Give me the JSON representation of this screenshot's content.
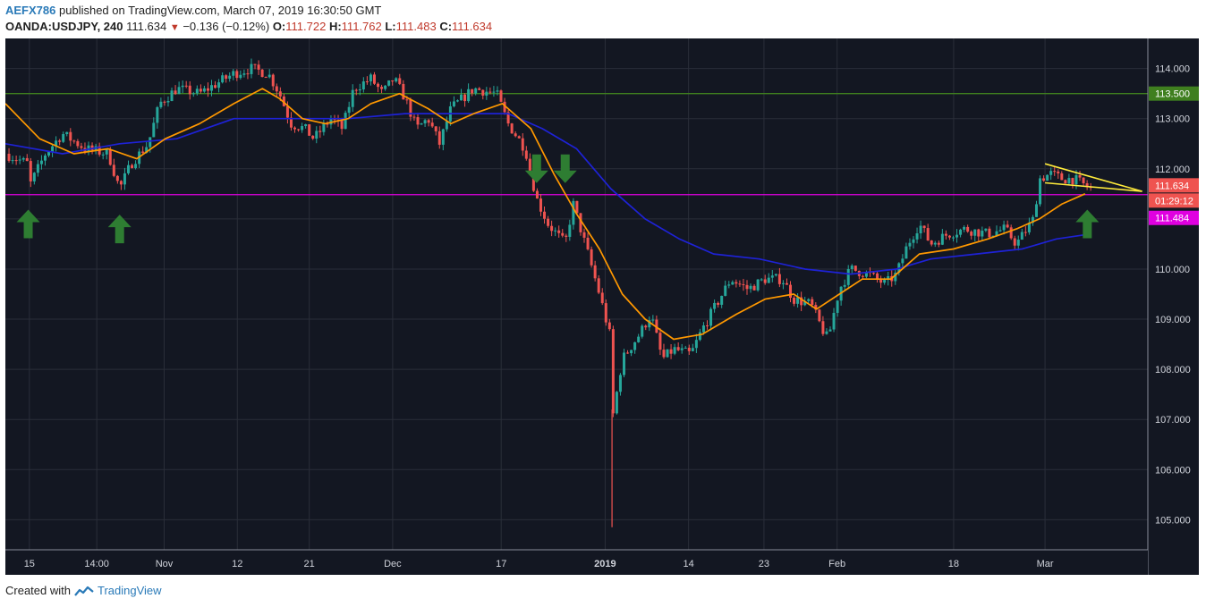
{
  "header": {
    "author": "AEFX786",
    "published": "published on TradingView.com, March 07, 2019 16:30:50 GMT",
    "symbol": "OANDA:USDJPY, 240",
    "last": "111.634",
    "change": "−0.136 (−0.12%)",
    "o_label": "O:",
    "o": "111.722",
    "h_label": "H:",
    "h": "111.762",
    "l_label": "L:",
    "l": "111.483",
    "c_label": "C:",
    "c": "111.634"
  },
  "footer": {
    "created": "Created with",
    "brand": "TradingView"
  },
  "colors": {
    "background": "#131722",
    "grid": "#2a2e39",
    "up": "#26a69a",
    "down": "#ef5350",
    "ma_fast": "#ff9800",
    "ma_slow": "#1e22d6",
    "resistance": "#3f7f1f",
    "support": "#e000e0",
    "wedge": "#ffeb3b",
    "arrow": "#2e7d32"
  },
  "chart_data": {
    "type": "candlestick",
    "symbol": "OANDA:USDJPY",
    "timeframe": "240",
    "ylim": [
      104.4,
      114.6
    ],
    "y_ticks": [
      105,
      106,
      107,
      108,
      109,
      110,
      111,
      112,
      113,
      114
    ],
    "y_tick_labels": [
      "105.000",
      "106.000",
      "107.000",
      "108.000",
      "109.000",
      "110.000",
      "111.000",
      "112.000",
      "113.000",
      "114.000"
    ],
    "x_ticks": [
      {
        "label": "15",
        "x": 0.021,
        "bold": false
      },
      {
        "label": "14:00",
        "x": 0.08,
        "bold": false
      },
      {
        "label": "Nov",
        "x": 0.139,
        "bold": false
      },
      {
        "label": "12",
        "x": 0.203,
        "bold": false
      },
      {
        "label": "21",
        "x": 0.266,
        "bold": false
      },
      {
        "label": "Dec",
        "x": 0.339,
        "bold": false
      },
      {
        "label": "17",
        "x": 0.434,
        "bold": false
      },
      {
        "label": "2019",
        "x": 0.525,
        "bold": true
      },
      {
        "label": "14",
        "x": 0.598,
        "bold": false
      },
      {
        "label": "23",
        "x": 0.664,
        "bold": false
      },
      {
        "label": "Feb",
        "x": 0.728,
        "bold": false
      },
      {
        "label": "18",
        "x": 0.83,
        "bold": false
      },
      {
        "label": "Mar",
        "x": 0.91,
        "bold": false
      }
    ],
    "price_path": [
      [
        0.0,
        112.3
      ],
      [
        0.02,
        112.1
      ],
      [
        0.022,
        111.7
      ],
      [
        0.035,
        112.3
      ],
      [
        0.05,
        112.7
      ],
      [
        0.07,
        112.4
      ],
      [
        0.09,
        112.3
      ],
      [
        0.1,
        111.6
      ],
      [
        0.11,
        112.1
      ],
      [
        0.125,
        112.5
      ],
      [
        0.135,
        113.3
      ],
      [
        0.15,
        113.6
      ],
      [
        0.17,
        113.5
      ],
      [
        0.185,
        113.7
      ],
      [
        0.2,
        113.9
      ],
      [
        0.215,
        114.0
      ],
      [
        0.23,
        113.9
      ],
      [
        0.24,
        113.5
      ],
      [
        0.25,
        112.9
      ],
      [
        0.262,
        112.8
      ],
      [
        0.27,
        112.6
      ],
      [
        0.285,
        113.0
      ],
      [
        0.295,
        112.8
      ],
      [
        0.305,
        113.6
      ],
      [
        0.32,
        113.8
      ],
      [
        0.33,
        113.5
      ],
      [
        0.34,
        113.8
      ],
      [
        0.35,
        113.4
      ],
      [
        0.36,
        112.8
      ],
      [
        0.37,
        113.0
      ],
      [
        0.38,
        112.5
      ],
      [
        0.39,
        113.2
      ],
      [
        0.41,
        113.6
      ],
      [
        0.43,
        113.5
      ],
      [
        0.44,
        112.9
      ],
      [
        0.455,
        112.4
      ],
      [
        0.465,
        111.4
      ],
      [
        0.475,
        110.9
      ],
      [
        0.49,
        110.5
      ],
      [
        0.497,
        111.3
      ],
      [
        0.51,
        110.3
      ],
      [
        0.52,
        109.5
      ],
      [
        0.53,
        108.6
      ],
      [
        0.532,
        107.1
      ],
      [
        0.54,
        108.2
      ],
      [
        0.555,
        108.7
      ],
      [
        0.565,
        109.1
      ],
      [
        0.575,
        108.2
      ],
      [
        0.585,
        108.4
      ],
      [
        0.6,
        108.3
      ],
      [
        0.61,
        108.8
      ],
      [
        0.625,
        109.4
      ],
      [
        0.635,
        109.8
      ],
      [
        0.65,
        109.6
      ],
      [
        0.665,
        109.8
      ],
      [
        0.68,
        109.8
      ],
      [
        0.69,
        109.4
      ],
      [
        0.705,
        109.3
      ],
      [
        0.715,
        108.8
      ],
      [
        0.72,
        108.6
      ],
      [
        0.73,
        109.6
      ],
      [
        0.74,
        110.0
      ],
      [
        0.755,
        109.9
      ],
      [
        0.77,
        109.7
      ],
      [
        0.78,
        109.9
      ],
      [
        0.79,
        110.5
      ],
      [
        0.8,
        110.9
      ],
      [
        0.81,
        110.5
      ],
      [
        0.825,
        110.7
      ],
      [
        0.84,
        110.8
      ],
      [
        0.86,
        110.7
      ],
      [
        0.875,
        110.8
      ],
      [
        0.885,
        110.5
      ],
      [
        0.9,
        111.0
      ],
      [
        0.905,
        111.8
      ],
      [
        0.915,
        111.9
      ],
      [
        0.925,
        111.8
      ],
      [
        0.935,
        111.8
      ],
      [
        0.95,
        111.6
      ]
    ],
    "ma_fast": [
      [
        0.0,
        113.3
      ],
      [
        0.03,
        112.6
      ],
      [
        0.06,
        112.3
      ],
      [
        0.09,
        112.4
      ],
      [
        0.115,
        112.2
      ],
      [
        0.14,
        112.6
      ],
      [
        0.17,
        112.9
      ],
      [
        0.2,
        113.3
      ],
      [
        0.225,
        113.6
      ],
      [
        0.24,
        113.4
      ],
      [
        0.26,
        113.0
      ],
      [
        0.28,
        112.9
      ],
      [
        0.3,
        113.0
      ],
      [
        0.32,
        113.3
      ],
      [
        0.345,
        113.5
      ],
      [
        0.37,
        113.2
      ],
      [
        0.39,
        112.9
      ],
      [
        0.41,
        113.1
      ],
      [
        0.435,
        113.3
      ],
      [
        0.46,
        112.8
      ],
      [
        0.48,
        111.9
      ],
      [
        0.5,
        111.1
      ],
      [
        0.52,
        110.4
      ],
      [
        0.54,
        109.5
      ],
      [
        0.56,
        109.0
      ],
      [
        0.585,
        108.6
      ],
      [
        0.61,
        108.7
      ],
      [
        0.64,
        109.1
      ],
      [
        0.665,
        109.4
      ],
      [
        0.69,
        109.5
      ],
      [
        0.71,
        109.2
      ],
      [
        0.73,
        109.5
      ],
      [
        0.75,
        109.8
      ],
      [
        0.775,
        109.8
      ],
      [
        0.8,
        110.3
      ],
      [
        0.83,
        110.4
      ],
      [
        0.86,
        110.6
      ],
      [
        0.885,
        110.8
      ],
      [
        0.905,
        111.0
      ],
      [
        0.925,
        111.3
      ],
      [
        0.945,
        111.5
      ]
    ],
    "ma_slow": [
      [
        0.0,
        112.5
      ],
      [
        0.05,
        112.3
      ],
      [
        0.1,
        112.5
      ],
      [
        0.15,
        112.6
      ],
      [
        0.2,
        113.0
      ],
      [
        0.25,
        113.0
      ],
      [
        0.3,
        113.0
      ],
      [
        0.35,
        113.1
      ],
      [
        0.4,
        113.1
      ],
      [
        0.44,
        113.1
      ],
      [
        0.47,
        112.8
      ],
      [
        0.5,
        112.4
      ],
      [
        0.53,
        111.6
      ],
      [
        0.56,
        111.0
      ],
      [
        0.59,
        110.6
      ],
      [
        0.62,
        110.3
      ],
      [
        0.66,
        110.2
      ],
      [
        0.7,
        110.0
      ],
      [
        0.74,
        109.9
      ],
      [
        0.78,
        110.0
      ],
      [
        0.81,
        110.2
      ],
      [
        0.85,
        110.3
      ],
      [
        0.89,
        110.4
      ],
      [
        0.92,
        110.6
      ],
      [
        0.95,
        110.7
      ]
    ],
    "horizontal_levels": [
      {
        "name": "resistance",
        "value": 113.5,
        "label": "113.500"
      },
      {
        "name": "support",
        "value": 111.484,
        "label": "111.484"
      }
    ],
    "current_price": {
      "value": 111.634,
      "label": "111.634",
      "countdown": "01:29:12"
    },
    "wedge": {
      "upper": [
        [
          0.91,
          112.1
        ],
        [
          0.995,
          111.55
        ]
      ],
      "lower": [
        [
          0.91,
          111.72
        ],
        [
          0.995,
          111.55
        ]
      ]
    },
    "annotations": [
      {
        "type": "arrow-up",
        "x": 0.02,
        "y": 110.9
      },
      {
        "type": "arrow-up",
        "x": 0.1,
        "y": 110.8
      },
      {
        "type": "arrow-down",
        "x": 0.465,
        "y": 112.0
      },
      {
        "type": "arrow-down",
        "x": 0.49,
        "y": 112.0
      },
      {
        "type": "arrow-up",
        "x": 0.947,
        "y": 110.9
      }
    ],
    "spike_low": {
      "x": 0.531,
      "value": 104.85
    }
  }
}
